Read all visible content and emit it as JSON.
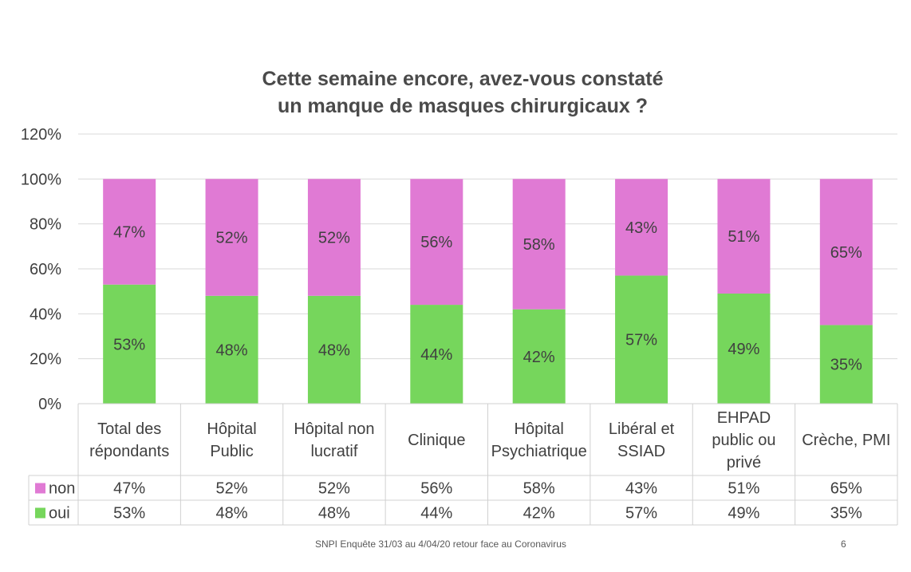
{
  "chart_data": {
    "type": "bar",
    "stacked": true,
    "title": [
      "Cette semaine encore, avez-vous constaté",
      "un manque de masques chirurgicaux ?"
    ],
    "categories": [
      [
        "Total des",
        "répondants"
      ],
      [
        "Hôpital",
        "Public"
      ],
      [
        "Hôpital non",
        "lucratif"
      ],
      [
        "Clinique"
      ],
      [
        "Hôpital",
        "Psychiatrique"
      ],
      [
        "Libéral et",
        "SSIAD"
      ],
      [
        "EHPAD",
        "public ou",
        "privé"
      ],
      [
        "Crèche, PMI"
      ]
    ],
    "series": [
      {
        "name": "oui",
        "color": "#76d65c",
        "values": [
          53,
          48,
          48,
          44,
          42,
          57,
          49,
          35
        ]
      },
      {
        "name": "non",
        "color": "#e07ad4",
        "values": [
          47,
          52,
          52,
          56,
          58,
          43,
          51,
          65
        ]
      }
    ],
    "ylim": [
      0,
      120
    ],
    "yticks": [
      0,
      20,
      40,
      60,
      80,
      100,
      120
    ],
    "ytick_format": "{v}%",
    "value_format": "{v}%",
    "grid": true,
    "legend": "data-table"
  },
  "table_series_order": [
    "non",
    "oui"
  ],
  "footer": {
    "source": "SNPI Enquête 31/03 au 4/04/20 retour face au Coronavirus",
    "page_number": "6"
  }
}
